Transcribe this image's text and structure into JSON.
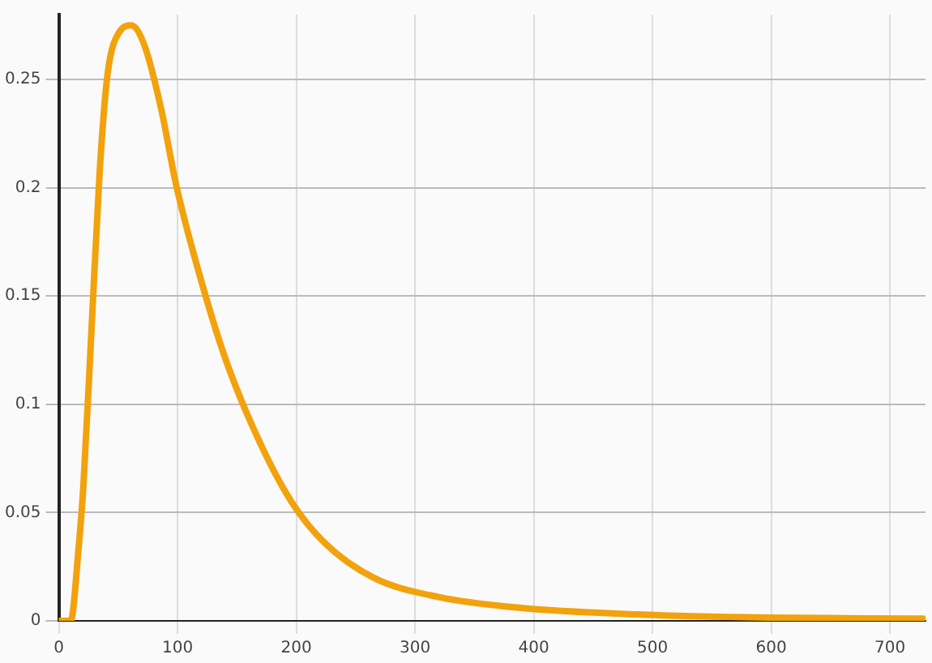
{
  "chart_data": {
    "type": "line",
    "x": [
      0,
      10,
      16.6,
      20.7,
      27.6,
      34.5,
      41,
      51,
      61,
      72,
      86,
      99,
      120,
      141,
      168,
      196,
      224,
      265,
      320,
      389,
      486,
      597,
      728
    ],
    "series": [
      {
        "color": "#f2a20c",
        "values": [
          0,
          0,
          0.033,
          0.062,
          0.135,
          0.208,
          0.252,
          0.272,
          0.275,
          0.266,
          0.237,
          0.201,
          0.157,
          0.12,
          0.084,
          0.055,
          0.036,
          0.02,
          0.011,
          0.006,
          0.003,
          0.0015,
          0.001
        ]
      }
    ],
    "xlim": [
      0,
      730
    ],
    "xticks": [
      0,
      100,
      200,
      300,
      400,
      500,
      600,
      700
    ],
    "ylim": [
      0,
      0.28
    ],
    "yticks": [
      0,
      0.05,
      0.1,
      0.15,
      0.2,
      0.25
    ],
    "grid": true,
    "marker": "none",
    "line_style": "solid",
    "legend": false
  }
}
